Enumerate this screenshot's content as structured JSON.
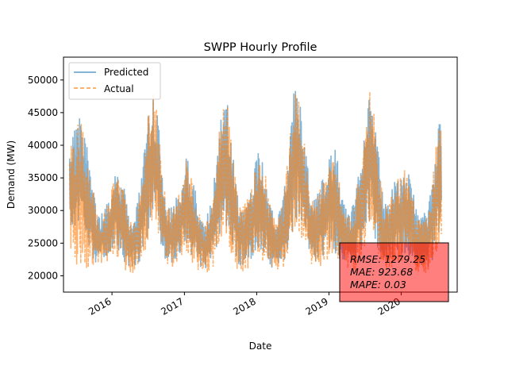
{
  "chart_data": {
    "type": "line",
    "title": "SWPP Hourly Profile",
    "xlabel": "Date",
    "ylabel": "Demand (MW)",
    "xlim": [
      "2015-05-01",
      "2020-10-10"
    ],
    "ylim": [
      17500,
      53500
    ],
    "x_ticks": [
      "2016",
      "2017",
      "2018",
      "2019",
      "2020"
    ],
    "y_ticks": [
      20000,
      25000,
      30000,
      35000,
      40000,
      45000,
      50000
    ],
    "grid": false,
    "legend_position": "top-left",
    "series": [
      {
        "name": "Predicted",
        "color": "#1f77b4",
        "style": "solid",
        "envelope": {
          "x": [
            "2015-06-01",
            "2015-07-01",
            "2015-07-25",
            "2015-08-20",
            "2015-09-20",
            "2015-10-15",
            "2015-11-15",
            "2015-12-15",
            "2016-01-15",
            "2016-02-15",
            "2016-03-15",
            "2016-04-15",
            "2016-05-15",
            "2016-06-10",
            "2016-07-05",
            "2016-07-22",
            "2016-08-10",
            "2016-09-05",
            "2016-10-01",
            "2016-11-01",
            "2016-12-10",
            "2017-01-10",
            "2017-02-10",
            "2017-03-15",
            "2017-04-15",
            "2017-05-15",
            "2017-06-15",
            "2017-07-10",
            "2017-07-22",
            "2017-08-10",
            "2017-09-05",
            "2017-10-01",
            "2017-11-01",
            "2017-12-15",
            "2018-01-05",
            "2018-02-10",
            "2018-03-15",
            "2018-04-15",
            "2018-05-15",
            "2018-06-15",
            "2018-07-05",
            "2018-07-20",
            "2018-08-10",
            "2018-09-05",
            "2018-10-01",
            "2018-11-01",
            "2018-12-10",
            "2019-01-10",
            "2019-02-10",
            "2019-03-15",
            "2019-04-15",
            "2019-05-15",
            "2019-06-15",
            "2019-07-10",
            "2019-07-22",
            "2019-08-15",
            "2019-09-05",
            "2019-10-01",
            "2019-11-01",
            "2019-12-15",
            "2020-01-15",
            "2020-02-15",
            "2020-03-15",
            "2020-04-15",
            "2020-05-15",
            "2020-06-15",
            "2020-07-05",
            "2020-07-22"
          ],
          "high": [
            40000,
            45500,
            45000,
            42500,
            37000,
            30500,
            30000,
            32500,
            36500,
            37000,
            32000,
            28000,
            33000,
            40000,
            47500,
            49700,
            48000,
            40500,
            32000,
            31000,
            34000,
            40000,
            36000,
            31000,
            28500,
            32000,
            40000,
            48000,
            50200,
            47000,
            39500,
            31500,
            32000,
            36000,
            40000,
            38000,
            31000,
            29000,
            33000,
            42000,
            49000,
            51500,
            49500,
            41500,
            32500,
            33000,
            36500,
            41000,
            40000,
            32000,
            30000,
            33000,
            40000,
            47000,
            50400,
            48000,
            41000,
            32500,
            32500,
            36500,
            37500,
            37000,
            31000,
            29500,
            31500,
            38000,
            44500,
            46000
          ],
          "low": [
            25000,
            26500,
            27000,
            26000,
            22000,
            21000,
            22000,
            22500,
            24000,
            22000,
            21000,
            21000,
            21000,
            23000,
            26000,
            27000,
            26000,
            23000,
            21500,
            21500,
            22500,
            23500,
            22000,
            21000,
            20500,
            21000,
            23000,
            25500,
            26000,
            25000,
            22500,
            21000,
            21000,
            22000,
            23000,
            22000,
            20500,
            20500,
            21000,
            23500,
            26000,
            27000,
            26000,
            23000,
            21500,
            21500,
            22000,
            23000,
            22000,
            21500,
            21000,
            21000,
            23000,
            25500,
            26500,
            25500,
            23000,
            21500,
            21500,
            22000,
            22500,
            22000,
            21000,
            20500,
            20500,
            22000,
            24500,
            25500
          ]
        }
      },
      {
        "name": "Actual",
        "color": "#ff7f0e",
        "style": "dashed",
        "envelope": {
          "x": [
            "2015-06-01",
            "2015-07-01",
            "2015-07-25",
            "2015-08-20",
            "2015-09-20",
            "2015-10-15",
            "2015-11-15",
            "2015-12-15",
            "2016-01-15",
            "2016-02-15",
            "2016-03-15",
            "2016-04-15",
            "2016-05-15",
            "2016-06-10",
            "2016-07-05",
            "2016-07-22",
            "2016-08-10",
            "2016-09-05",
            "2016-10-01",
            "2016-11-01",
            "2016-12-10",
            "2017-01-10",
            "2017-02-10",
            "2017-03-15",
            "2017-04-15",
            "2017-05-15",
            "2017-06-15",
            "2017-07-10",
            "2017-07-22",
            "2017-08-10",
            "2017-09-05",
            "2017-10-01",
            "2017-11-01",
            "2017-12-15",
            "2018-01-05",
            "2018-02-10",
            "2018-03-15",
            "2018-04-15",
            "2018-05-15",
            "2018-06-15",
            "2018-07-05",
            "2018-07-20",
            "2018-08-10",
            "2018-09-05",
            "2018-10-01",
            "2018-11-01",
            "2018-12-10",
            "2019-01-10",
            "2019-02-10",
            "2019-03-15",
            "2019-04-15",
            "2019-05-15",
            "2019-06-15",
            "2019-07-10",
            "2019-07-22",
            "2019-08-15",
            "2019-09-05",
            "2019-10-01",
            "2019-11-01",
            "2019-12-15",
            "2020-01-15",
            "2020-02-15",
            "2020-03-15",
            "2020-04-15",
            "2020-05-15",
            "2020-06-15",
            "2020-07-05",
            "2020-07-22"
          ],
          "high": [
            39500,
            45000,
            45200,
            42000,
            36500,
            30000,
            29500,
            32000,
            36000,
            36500,
            31500,
            27500,
            32500,
            39500,
            47000,
            49500,
            47500,
            40000,
            31500,
            30500,
            33500,
            39500,
            35500,
            30500,
            28000,
            31500,
            39500,
            47500,
            50000,
            46500,
            39000,
            31000,
            31500,
            35500,
            39500,
            37500,
            30500,
            28500,
            32500,
            41500,
            48500,
            51200,
            49000,
            41000,
            32000,
            32500,
            36000,
            40500,
            39500,
            31500,
            29500,
            32500,
            39500,
            46500,
            50000,
            47500,
            40500,
            32000,
            32000,
            36000,
            37000,
            36500,
            30500,
            29000,
            31000,
            37500,
            44000,
            45800
          ],
          "low": [
            24000,
            19500,
            19500,
            19500,
            20500,
            20500,
            21000,
            21500,
            22500,
            21000,
            20000,
            20000,
            20000,
            22000,
            25000,
            26000,
            25000,
            22000,
            20500,
            20500,
            21500,
            22500,
            21000,
            20000,
            19800,
            20000,
            22000,
            24500,
            25000,
            24000,
            21500,
            20000,
            20000,
            21000,
            22000,
            21000,
            19800,
            19800,
            20000,
            22500,
            25000,
            26000,
            25000,
            22000,
            20500,
            20500,
            21000,
            22000,
            21000,
            20500,
            20000,
            20000,
            22000,
            24500,
            25500,
            24500,
            22000,
            20500,
            20500,
            21000,
            21500,
            21000,
            20000,
            19800,
            20000,
            21000,
            23500,
            24500
          ]
        }
      }
    ],
    "legend": [
      "Predicted",
      "Actual"
    ],
    "annotation": {
      "lines": [
        "RMSE: 1279.25",
        "MAE: 923.68",
        "MAPE: 0.03"
      ],
      "box_color": "#ff0000",
      "box_alpha": 0.5
    }
  }
}
